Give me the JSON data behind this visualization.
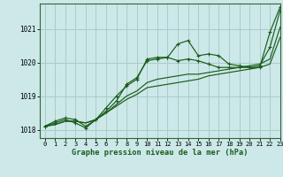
{
  "title": "Graphe pression niveau de la mer (hPa)",
  "bg_color": "#cce8e8",
  "grid_color": "#aacccc",
  "line_color": "#1a5c1a",
  "xlim": [
    -0.5,
    23
  ],
  "ylim": [
    1017.75,
    1021.75
  ],
  "yticks": [
    1018,
    1019,
    1020,
    1021
  ],
  "xticks": [
    0,
    1,
    2,
    3,
    4,
    5,
    6,
    7,
    8,
    9,
    10,
    11,
    12,
    13,
    14,
    15,
    16,
    17,
    18,
    19,
    20,
    21,
    22,
    23
  ],
  "series_with_markers": [
    [
      1018.1,
      1018.2,
      1018.3,
      1018.2,
      1018.05,
      1018.3,
      1018.55,
      1018.85,
      1019.35,
      1019.55,
      1020.05,
      1020.1,
      1020.15,
      1020.55,
      1020.65,
      1020.2,
      1020.25,
      1020.2,
      1019.95,
      1019.9,
      1019.85,
      1019.9,
      1020.45,
      1021.55
    ],
    [
      1018.1,
      1018.25,
      1018.35,
      1018.3,
      1018.1,
      1018.3,
      1018.65,
      1019.0,
      1019.3,
      1019.5,
      1020.1,
      1020.15,
      1020.15,
      1020.05,
      1020.1,
      1020.05,
      1019.95,
      1019.85,
      1019.85,
      1019.85,
      1019.85,
      1019.85,
      1020.9,
      1021.65
    ]
  ],
  "series_plain": [
    [
      1018.1,
      1018.15,
      1018.25,
      1018.25,
      1018.2,
      1018.3,
      1018.5,
      1018.75,
      1019.0,
      1019.15,
      1019.4,
      1019.5,
      1019.55,
      1019.6,
      1019.65,
      1019.65,
      1019.7,
      1019.75,
      1019.8,
      1019.85,
      1019.9,
      1019.95,
      1020.1,
      1021.05
    ],
    [
      1018.1,
      1018.15,
      1018.25,
      1018.25,
      1018.2,
      1018.3,
      1018.5,
      1018.7,
      1018.9,
      1019.05,
      1019.25,
      1019.3,
      1019.35,
      1019.4,
      1019.45,
      1019.5,
      1019.6,
      1019.65,
      1019.7,
      1019.75,
      1019.8,
      1019.85,
      1019.95,
      1020.75
    ]
  ]
}
